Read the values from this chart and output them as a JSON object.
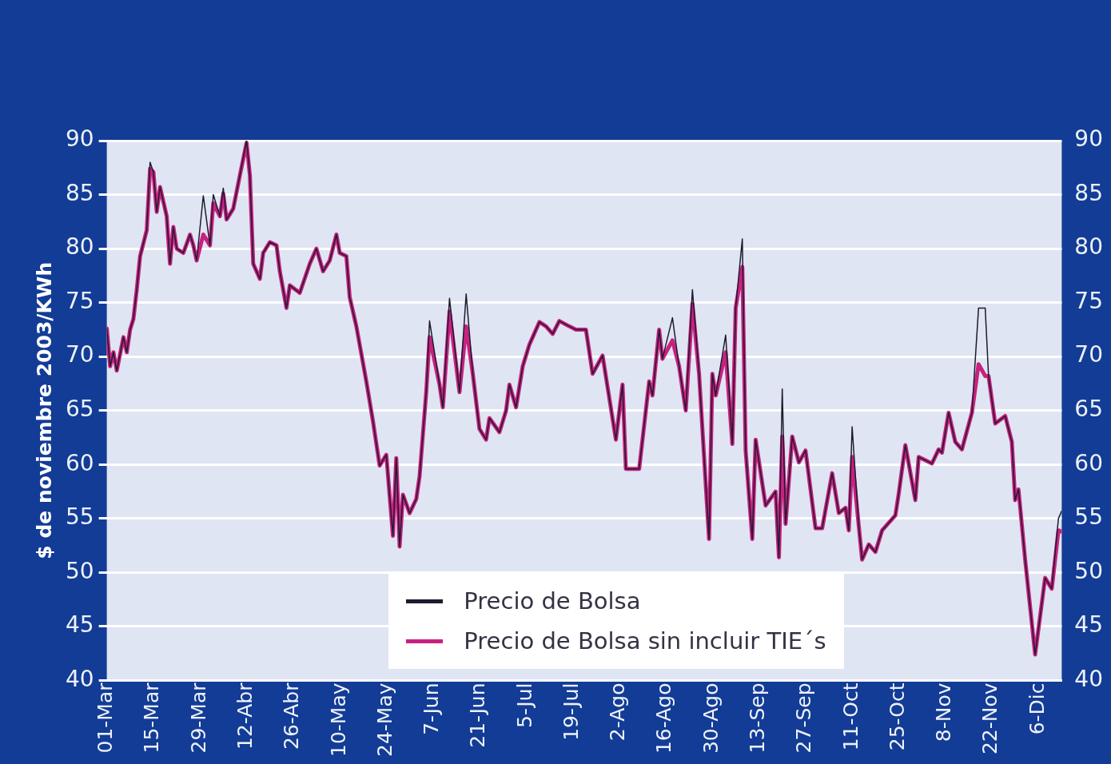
{
  "chart_data": {
    "type": "line",
    "ylabel": "$ de noviembre 2003/KWh",
    "x": [
      "--03-01",
      "--03-02",
      "--03-03",
      "--03-04",
      "--03-06",
      "--03-07",
      "--03-08",
      "--03-09",
      "--03-10",
      "--03-11",
      "--03-13",
      "--03-14",
      "--03-15",
      "--03-16",
      "--03-17",
      "--03-19",
      "--03-20",
      "--03-21",
      "--03-22",
      "--03-24",
      "--03-26",
      "--03-27",
      "--03-28",
      "--03-30",
      "--04-01",
      "--04-02",
      "--04-04",
      "--04-05",
      "--04-06",
      "--04-08",
      "--04-10",
      "--04-12",
      "--04-13",
      "--04-14",
      "--04-16",
      "--04-17",
      "--04-19",
      "--04-21",
      "--04-22",
      "--04-24",
      "--04-25",
      "--04-28",
      "--05-01",
      "--05-03",
      "--05-05",
      "--05-07",
      "--05-09",
      "--05-10",
      "--05-12",
      "--05-13",
      "--05-15",
      "--05-18",
      "--05-20",
      "--05-22",
      "--05-24",
      "--05-26",
      "--05-27",
      "--05-28",
      "--05-29",
      "--05-31",
      "--06-02",
      "--06-03",
      "--06-05",
      "--06-06",
      "--06-09",
      "--06-10",
      "--06-12",
      "--06-15",
      "--06-17",
      "--06-19",
      "--06-21",
      "--06-23",
      "--06-24",
      "--06-27",
      "--06-29",
      "--06-30",
      "--07-02",
      "--07-04",
      "--07-06",
      "--07-07",
      "--07-09",
      "--07-11",
      "--07-13",
      "--07-15",
      "--07-18",
      "--07-20",
      "--07-23",
      "--07-25",
      "--07-28",
      "--08-01",
      "--08-03",
      "--08-04",
      "--08-08",
      "--08-11",
      "--08-12",
      "--08-14",
      "--08-15",
      "--08-18",
      "--08-20",
      "--08-22",
      "--08-24",
      "--08-26",
      "--08-29",
      "--08-30",
      "--08-31",
      "--09-03",
      "--09-05",
      "--09-06",
      "--09-08",
      "--09-09",
      "--09-11",
      "--09-12",
      "--09-15",
      "--09-18",
      "--09-19",
      "--09-20",
      "--09-21",
      "--09-23",
      "--09-25",
      "--09-27",
      "--09-30",
      "--10-02",
      "--10-05",
      "--10-07",
      "--10-09",
      "--10-10",
      "--10-11",
      "--10-13",
      "--10-14",
      "--10-16",
      "--10-18",
      "--10-20",
      "--10-24",
      "--10-25",
      "--10-27",
      "--10-30",
      "--10-31",
      "--11-04",
      "--11-06",
      "--11-07",
      "--11-09",
      "--11-11",
      "--11-13",
      "--11-16",
      "--11-18",
      "--11-20",
      "--11-21",
      "--11-23",
      "--11-26",
      "--11-28",
      "--11-29",
      "--11-30",
      "--12-02",
      "--12-05",
      "--12-08",
      "--12-10",
      "--12-12",
      "--12-13"
    ],
    "series": [
      {
        "name": "Precio de Bolsa",
        "color": "#1c1c30",
        "values": [
          72.6,
          69.1,
          70.4,
          68.7,
          71.8,
          70.4,
          72.5,
          73.5,
          76.2,
          79.3,
          81.7,
          88.0,
          87.1,
          83.4,
          85.7,
          83.0,
          78.6,
          82.0,
          80.0,
          79.6,
          81.3,
          80.3,
          78.9,
          84.9,
          80.3,
          85.0,
          83.0,
          85.6,
          82.7,
          83.7,
          86.8,
          90.0,
          86.8,
          78.6,
          77.2,
          79.6,
          80.6,
          80.3,
          77.9,
          74.5,
          76.6,
          75.9,
          78.6,
          80.0,
          77.9,
          78.9,
          81.3,
          79.6,
          79.3,
          75.5,
          72.8,
          67.7,
          64.0,
          59.9,
          60.9,
          53.4,
          60.6,
          52.4,
          57.2,
          55.5,
          56.8,
          58.9,
          66.7,
          73.3,
          67.4,
          65.3,
          75.4,
          66.7,
          75.8,
          68.4,
          63.3,
          62.3,
          64.3,
          63.0,
          65.0,
          67.4,
          65.3,
          69.1,
          71.1,
          71.8,
          73.2,
          72.8,
          72.1,
          73.3,
          72.8,
          72.5,
          72.5,
          68.4,
          70.1,
          62.3,
          67.4,
          59.6,
          59.6,
          67.7,
          66.4,
          72.5,
          69.8,
          73.6,
          69.1,
          65.0,
          76.2,
          68.4,
          53.1,
          68.4,
          66.4,
          72.0,
          61.9,
          74.5,
          80.9,
          61.3,
          53.1,
          62.3,
          56.2,
          57.5,
          51.4,
          67.0,
          54.5,
          62.6,
          60.2,
          61.3,
          54.1,
          54.1,
          59.2,
          55.5,
          56.0,
          53.9,
          63.5,
          54.3,
          51.2,
          52.6,
          51.9,
          53.9,
          55.3,
          57.3,
          61.8,
          56.7,
          60.7,
          60.1,
          61.4,
          61.1,
          64.8,
          62.1,
          61.4,
          64.8,
          74.5,
          74.5,
          68.2,
          63.8,
          64.5,
          62.1,
          56.7,
          57.7,
          51.2,
          42.4,
          49.5,
          48.5,
          55.0,
          55.7
        ]
      },
      {
        "name": "Precio de Bolsa sin incluir TIE´s",
        "color": "#c8217f",
        "values": [
          72.6,
          69.1,
          70.4,
          68.7,
          71.8,
          70.4,
          72.5,
          73.5,
          76.2,
          79.3,
          81.7,
          87.4,
          87.1,
          83.4,
          85.7,
          83.0,
          78.6,
          82.0,
          80.0,
          79.6,
          81.3,
          80.3,
          78.9,
          81.3,
          80.3,
          84.2,
          83.0,
          85.1,
          82.7,
          83.7,
          86.8,
          89.8,
          86.8,
          78.6,
          77.2,
          79.6,
          80.6,
          80.3,
          77.9,
          74.5,
          76.6,
          75.9,
          78.6,
          80.0,
          77.9,
          78.9,
          81.3,
          79.6,
          79.3,
          75.5,
          72.8,
          67.7,
          64.0,
          59.9,
          60.9,
          53.4,
          60.6,
          52.4,
          57.2,
          55.5,
          56.8,
          58.9,
          66.7,
          71.8,
          67.4,
          65.3,
          74.2,
          66.7,
          72.8,
          68.4,
          63.3,
          62.3,
          64.3,
          63.0,
          65.0,
          67.4,
          65.3,
          69.1,
          71.1,
          71.8,
          73.2,
          72.8,
          72.1,
          73.3,
          72.8,
          72.5,
          72.5,
          68.4,
          70.1,
          62.3,
          67.4,
          59.6,
          59.6,
          67.7,
          66.4,
          72.5,
          69.8,
          71.5,
          69.1,
          65.0,
          74.9,
          68.4,
          53.1,
          68.4,
          66.4,
          70.4,
          61.9,
          74.5,
          78.3,
          61.3,
          53.1,
          62.3,
          56.2,
          57.5,
          51.4,
          62.6,
          54.5,
          62.6,
          60.2,
          61.3,
          54.1,
          54.1,
          59.2,
          55.5,
          56.0,
          53.9,
          60.7,
          54.3,
          51.2,
          52.6,
          51.9,
          53.9,
          55.3,
          57.3,
          61.8,
          56.7,
          60.7,
          60.1,
          61.4,
          61.1,
          64.8,
          62.1,
          61.4,
          64.8,
          69.3,
          68.2,
          68.2,
          63.8,
          64.5,
          62.1,
          56.7,
          57.7,
          51.2,
          42.4,
          49.5,
          48.5,
          53.9,
          53.8
        ]
      }
    ],
    "xlim": [
      "--03-01",
      "--12-13"
    ],
    "xticks": [
      {
        "value": "--03-01",
        "label": "01-Mar"
      },
      {
        "value": "--03-15",
        "label": "15-Mar"
      },
      {
        "value": "--03-29",
        "label": "29-Mar"
      },
      {
        "value": "--04-12",
        "label": "12-Abr"
      },
      {
        "value": "--04-26",
        "label": "26-Abr"
      },
      {
        "value": "--05-10",
        "label": "10-May"
      },
      {
        "value": "--05-24",
        "label": "24-May"
      },
      {
        "value": "--06-07",
        "label": "7-Jun"
      },
      {
        "value": "--06-21",
        "label": "21-Jun"
      },
      {
        "value": "--07-05",
        "label": "5-Jul"
      },
      {
        "value": "--07-19",
        "label": "19-Jul"
      },
      {
        "value": "--08-02",
        "label": "2-Ago"
      },
      {
        "value": "--08-16",
        "label": "16-Ago"
      },
      {
        "value": "--08-30",
        "label": "30-Ago"
      },
      {
        "value": "--09-13",
        "label": "13-Sep"
      },
      {
        "value": "--09-27",
        "label": "27-Sep"
      },
      {
        "value": "--10-11",
        "label": "11-Oct"
      },
      {
        "value": "--10-25",
        "label": "25-Oct"
      },
      {
        "value": "--11-08",
        "label": "8-Nov"
      },
      {
        "value": "--11-22",
        "label": "22-Nov"
      },
      {
        "value": "--12-06",
        "label": "6-Dic"
      }
    ],
    "ylim": [
      40,
      90
    ],
    "yticks": [
      40,
      45,
      50,
      55,
      60,
      65,
      70,
      75,
      80,
      85,
      90
    ],
    "y2lim": [
      40,
      90
    ],
    "y2ticks": [
      40,
      45,
      50,
      55,
      60,
      65,
      70,
      75,
      80,
      85,
      90
    ],
    "grid": "y",
    "legend": "bottom",
    "marker": "none",
    "line_style": "solid"
  }
}
